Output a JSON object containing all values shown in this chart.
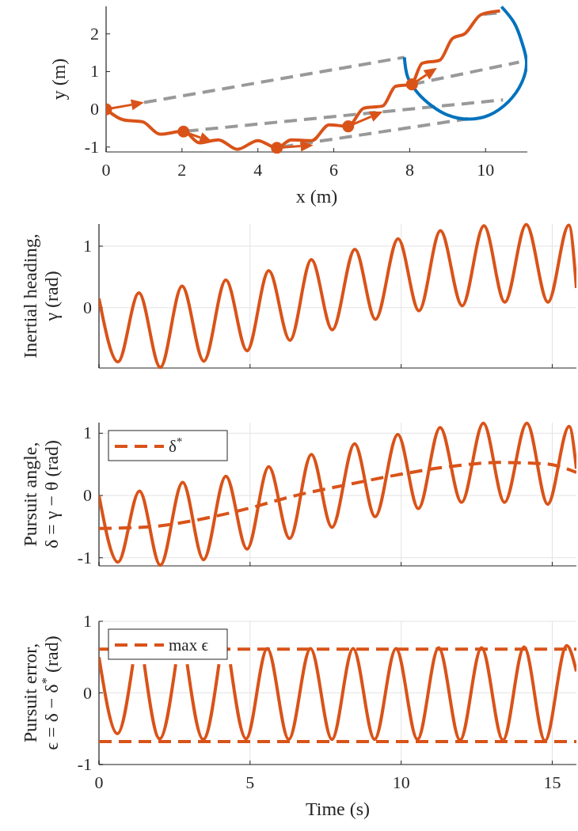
{
  "chart_data": [
    {
      "type": "line",
      "xlabel": "x (m)",
      "ylabel": "y (m)",
      "xlim": [
        0,
        11.1
      ],
      "ylim": [
        -1.13,
        2.73
      ],
      "xticks": [
        0,
        2,
        4,
        6,
        8,
        10
      ],
      "yticks": [
        -1,
        0,
        1,
        2
      ],
      "series": [
        {
          "color": "#999999",
          "line_style": "dashed",
          "x": [
            1.0,
            7.86,
            null,
            8.06,
            10.88,
            null,
            2.1,
            10.46,
            null,
            4.6,
            9.54,
            null,
            9.96,
            10.3
          ],
          "values": [
            0.18,
            1.38,
            null,
            0.66,
            1.25,
            null,
            -0.58,
            0.25,
            null,
            -1.0,
            -0.25,
            null,
            2.52,
            2.55
          ]
        },
        {
          "color": "#0072bd",
          "x": [
            7.86,
            7.95,
            8.2,
            8.6,
            9.0,
            9.54,
            10.1,
            10.6,
            10.95,
            11.08,
            10.95,
            10.75,
            10.42
          ],
          "values": [
            1.38,
            0.85,
            0.45,
            0.08,
            -0.15,
            -0.26,
            -0.15,
            0.2,
            0.7,
            1.22,
            1.8,
            2.3,
            2.72
          ]
        },
        {
          "color": "#d95319",
          "x": [
            0,
            0.46,
            0.96,
            1.42,
            2.04,
            2.46,
            2.96,
            3.46,
            4.0,
            4.5,
            4.88,
            5.42,
            5.88,
            6.38,
            6.79,
            7.29,
            7.63,
            8.04,
            8.33,
            8.79,
            9.13,
            9.46,
            9.88,
            10.38
          ],
          "values": [
            0,
            -0.28,
            -0.33,
            -0.66,
            -0.58,
            -0.89,
            -0.81,
            -1.06,
            -0.83,
            -1.02,
            -0.81,
            -0.83,
            -0.41,
            -0.45,
            0.03,
            0.09,
            0.61,
            0.66,
            1.22,
            1.3,
            1.88,
            2.01,
            2.51,
            2.61
          ]
        },
        {
          "type": "scatter",
          "marker": "circle",
          "color": "#d95319",
          "x": [
            0,
            2.04,
            4.5,
            6.38,
            8.06
          ],
          "values": [
            0,
            -0.59,
            -1.02,
            -0.45,
            0.66
          ]
        }
      ]
    },
    {
      "type": "line",
      "ylabel": "Inertial heading,\nγ (rad)",
      "xlim": [
        0,
        15.8
      ],
      "ylim": [
        -0.98,
        1.36
      ],
      "xticks": [
        0,
        5,
        10,
        15
      ],
      "yticks": [
        0,
        1
      ],
      "grid": true,
      "tick_labels": "y",
      "series": [
        {
          "color": "#d95319",
          "x": [
            0,
            0.63,
            1.32,
            2.03,
            2.75,
            3.47,
            4.2,
            4.9,
            5.62,
            6.32,
            7.03,
            7.72,
            8.47,
            9.15,
            9.9,
            10.59,
            11.3,
            12.02,
            12.74,
            13.43,
            14.14,
            14.86,
            15.55,
            15.8
          ],
          "values": [
            0.15,
            -0.88,
            0.24,
            -0.97,
            0.35,
            -0.87,
            0.45,
            -0.7,
            0.6,
            -0.53,
            0.78,
            -0.36,
            0.95,
            -0.19,
            1.12,
            -0.05,
            1.25,
            0.03,
            1.33,
            0.09,
            1.35,
            0.09,
            1.34,
            0.32
          ]
        }
      ]
    },
    {
      "type": "line",
      "ylabel": "Pursuit angle,\nδ = γ − θ (rad)",
      "xlim": [
        0,
        15.8
      ],
      "ylim": [
        -1.13,
        1.17
      ],
      "xticks": [
        0,
        5,
        10,
        15
      ],
      "yticks": [
        -1,
        0,
        1
      ],
      "grid": true,
      "tick_labels": "y",
      "legend": "top left",
      "series": [
        {
          "color": "#d95319",
          "x": [
            0,
            0.63,
            1.34,
            2.03,
            2.77,
            3.46,
            4.2,
            4.9,
            5.62,
            6.31,
            7.03,
            7.71,
            8.46,
            9.14,
            9.89,
            10.57,
            11.29,
            12.0,
            12.72,
            13.42,
            14.16,
            14.85,
            15.56,
            15.8
          ],
          "values": [
            0,
            -1.07,
            0.07,
            -1.12,
            0.21,
            -1.03,
            0.31,
            -0.86,
            0.46,
            -0.69,
            0.66,
            -0.51,
            0.83,
            -0.34,
            0.98,
            -0.21,
            1.09,
            -0.11,
            1.16,
            -0.11,
            1.16,
            -0.14,
            1.11,
            0.43
          ]
        },
        {
          "name": "δ$^{*}$",
          "color": "#d95319",
          "line_style": "dashed",
          "x": [
            0,
            1.73,
            3.17,
            4.84,
            6.51,
            8.18,
            9.86,
            11.53,
            13.2,
            14.75,
            15.8
          ],
          "values": [
            -0.53,
            -0.5,
            -0.4,
            -0.22,
            0,
            0.17,
            0.33,
            0.46,
            0.53,
            0.51,
            0.37
          ]
        }
      ]
    },
    {
      "type": "line",
      "xlabel": "Time (s)",
      "ylabel": "Pursuit error,\nϵ = δ − δ$^{*}$ (rad)",
      "xlim": [
        0,
        15.8
      ],
      "ylim": [
        -1,
        1
      ],
      "xticks": [
        0,
        5,
        10,
        15
      ],
      "yticks": [
        -1,
        0,
        1
      ],
      "grid": true,
      "legend": "top left",
      "series": [
        {
          "color": "#d95319",
          "x": [
            0,
            0.61,
            1.12,
            1.31,
            1.5,
            2.01,
            2.54,
            2.73,
            2.92,
            3.45,
            3.97,
            4.16,
            4.35,
            4.87,
            5.57,
            6.28,
            7.0,
            7.71,
            8.41,
            9.12,
            9.83,
            10.54,
            11.24,
            11.95,
            12.66,
            13.37,
            14.07,
            14.76,
            15.48,
            15.8
          ],
          "values": [
            0.5,
            -0.57,
            0.4,
            null,
            0.4,
            -0.64,
            0.4,
            null,
            0.4,
            -0.65,
            0.4,
            null,
            0.4,
            -0.64,
            0.62,
            -0.65,
            0.62,
            -0.65,
            0.62,
            -0.65,
            0.62,
            -0.65,
            0.63,
            -0.66,
            0.63,
            -0.66,
            0.64,
            -0.67,
            0.66,
            0.3
          ]
        },
        {
          "name": "max ϵ",
          "color": "#d95319",
          "line_style": "dashed",
          "x": [
            0,
            15.8
          ],
          "values": [
            0.61,
            0.61
          ]
        },
        {
          "color": "#d95319",
          "line_style": "dashed",
          "x": [
            0,
            15.8
          ],
          "values": [
            -0.68,
            -0.68
          ]
        }
      ]
    }
  ]
}
